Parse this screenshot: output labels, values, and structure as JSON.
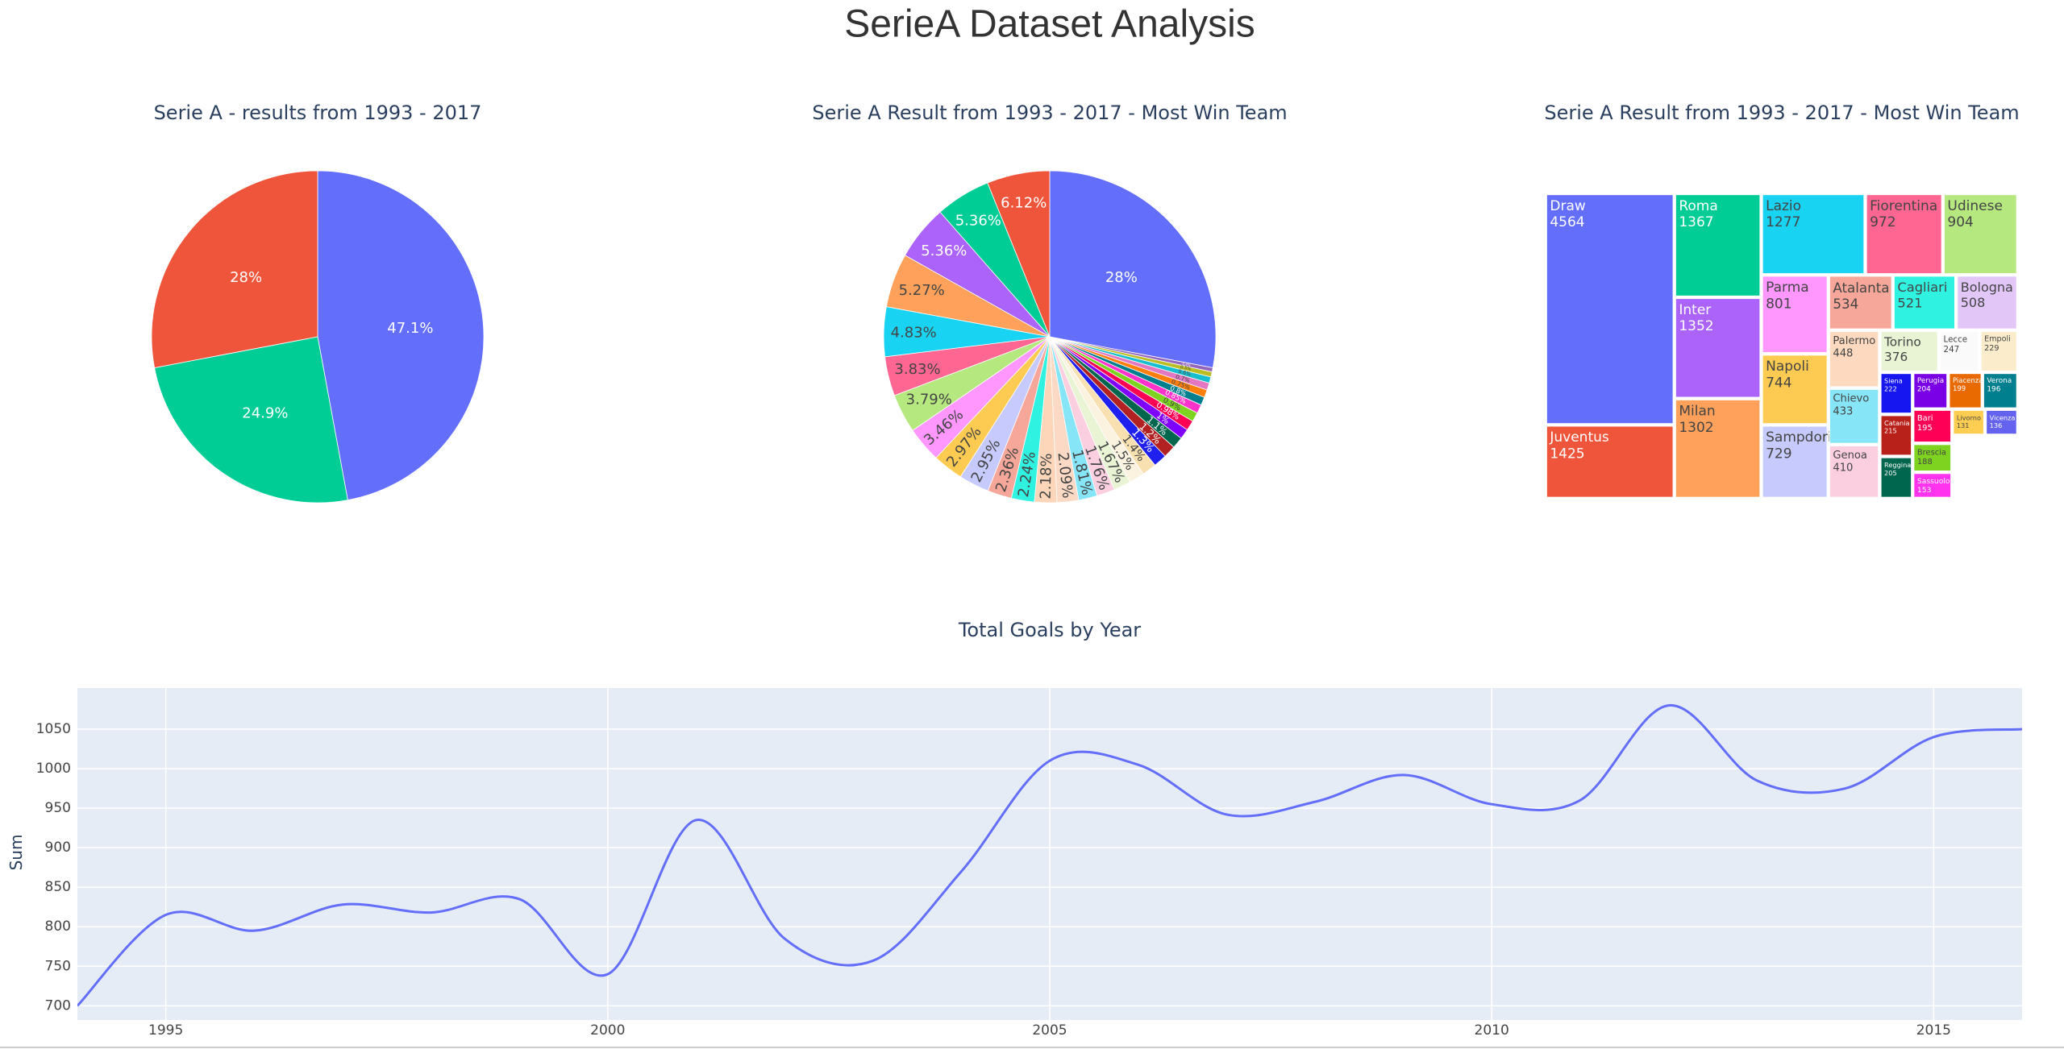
{
  "title": "SerieA Dataset Analysis",
  "chart_data": [
    {
      "type": "pie",
      "title": "Serie A - results from 1993 - 2017",
      "values": [
        47.1,
        28,
        24.9
      ],
      "value_labels": [
        "47.1%",
        "28%",
        "24.9%"
      ],
      "colors": [
        "#636efa",
        "#ef553b",
        "#00cc96"
      ]
    },
    {
      "type": "pie",
      "title": "Serie A Result from 1993 - 2017 - Most Win Team",
      "values": [
        28,
        6.12,
        5.36,
        5.36,
        5.27,
        4.83,
        3.83,
        3.79,
        3.46,
        2.97,
        2.95,
        2.36,
        2.24,
        2.18,
        2.09,
        1.81,
        1.76,
        1.67,
        1.5,
        1.4,
        1.3,
        1.2,
        1.1,
        1.0,
        0.98,
        0.9,
        0.85,
        0.8,
        0.75,
        0.7,
        0.6,
        0.5,
        0.4
      ],
      "value_labels": [
        "28%",
        "6.12%",
        "5.36%",
        "5.36%",
        "5.27%",
        "4.83%",
        "3.83%",
        "3.79%",
        "3.46%",
        "2.97%",
        "2.95%",
        "2.36%",
        "2.24%",
        "2.18%",
        "2.09%",
        "1.81%",
        "1.76%",
        "1.67%",
        "1.5%",
        "1.4%",
        "1.3%",
        "1.2%",
        "1.1%",
        "1%",
        "0.98%",
        "0.9%",
        "0.85%",
        "0.8%",
        "0.75%",
        "0.7%",
        "0.6%",
        "0.5%",
        "0.4%"
      ],
      "colors": [
        "#636efa",
        "#ef553b",
        "#00cc96",
        "#ab63fa",
        "#ffa15a",
        "#19d3f3",
        "#ff6692",
        "#b6e880",
        "#ff97ff",
        "#fecb52",
        "#c6cafd",
        "#f7a799",
        "#2ff3e0",
        "#fdd5b8",
        "#fcd9c4",
        "#86e5f6",
        "#fbcfe0",
        "#e8f4d4",
        "#fbf2e0",
        "#f9e0b0",
        "#1f1ff0",
        "#b22222",
        "#00664d",
        "#7f00ff",
        "#ff0055",
        "#7ed321",
        "#ff33cc",
        "#007f8f",
        "#ff7f0e",
        "#e377c2",
        "#17becf",
        "#bcbd22",
        "#9467bd"
      ]
    },
    {
      "type": "treemap",
      "title": "Serie A Result from 1993 - 2017 - Most Win Team",
      "categories": [
        "Draw",
        "Juventus",
        "Roma",
        "Inter",
        "Milan",
        "Lazio",
        "Fiorentina",
        "Udinese",
        "Parma",
        "Napoli",
        "Sampdoria",
        "Atalanta",
        "Cagliari",
        "Bologna",
        "Palermo",
        "Chievo",
        "Genoa",
        "Torino",
        "Lecce",
        "Empoli",
        "Siena",
        "Perugia",
        "Piacenza",
        "Verona",
        "Catania",
        "Bari",
        "Livorno",
        "Vicenza",
        "Reggina",
        "Brescia",
        "Sassuolo"
      ],
      "values": [
        4564,
        1425,
        1367,
        1352,
        1302,
        1277,
        972,
        904,
        801,
        744,
        729,
        534,
        521,
        508,
        448,
        433,
        410,
        376,
        247,
        229,
        222,
        204,
        199,
        196,
        215,
        195,
        131,
        136,
        205,
        188,
        153
      ],
      "colors": [
        "#636efa",
        "#ef553b",
        "#00cc96",
        "#ab63fa",
        "#ffa15a",
        "#19d3f3",
        "#ff6692",
        "#b6e880",
        "#ff97ff",
        "#fecb52",
        "#c6cafd",
        "#f7a799",
        "#2ff3e0",
        "#e2c6f8",
        "#fdd9c0",
        "#86e5f6",
        "#fbcfe0",
        "#e8f4d4",
        "#fafafa",
        "#fbeccb",
        "#1616f0",
        "#7a00e6",
        "#e86a00",
        "#007f8f",
        "#b8201a",
        "#ff0057",
        "#fece52",
        "#6363f0",
        "#00664d",
        "#7ed321",
        "#ff33ee"
      ]
    },
    {
      "type": "line",
      "title": "Total Goals by Year",
      "y_label": "Sum",
      "x": [
        1994,
        1995,
        1996,
        1997,
        1998,
        1999,
        2000,
        2001,
        2002,
        2003,
        2004,
        2005,
        2006,
        2007,
        2008,
        2009,
        2010,
        2011,
        2012,
        2013,
        2014,
        2015,
        2016
      ],
      "values": [
        700,
        815,
        795,
        828,
        818,
        835,
        740,
        935,
        785,
        757,
        870,
        1010,
        1005,
        942,
        958,
        992,
        955,
        960,
        1080,
        985,
        975,
        1040,
        1050
      ],
      "color": "#636efa",
      "xlim": [
        1994,
        2016
      ],
      "ylim": [
        682,
        1102
      ],
      "xticks": [
        1995,
        2000,
        2005,
        2010,
        2015
      ],
      "yticks": [
        700,
        750,
        800,
        850,
        900,
        950,
        1000,
        1050
      ],
      "grid": true
    }
  ]
}
